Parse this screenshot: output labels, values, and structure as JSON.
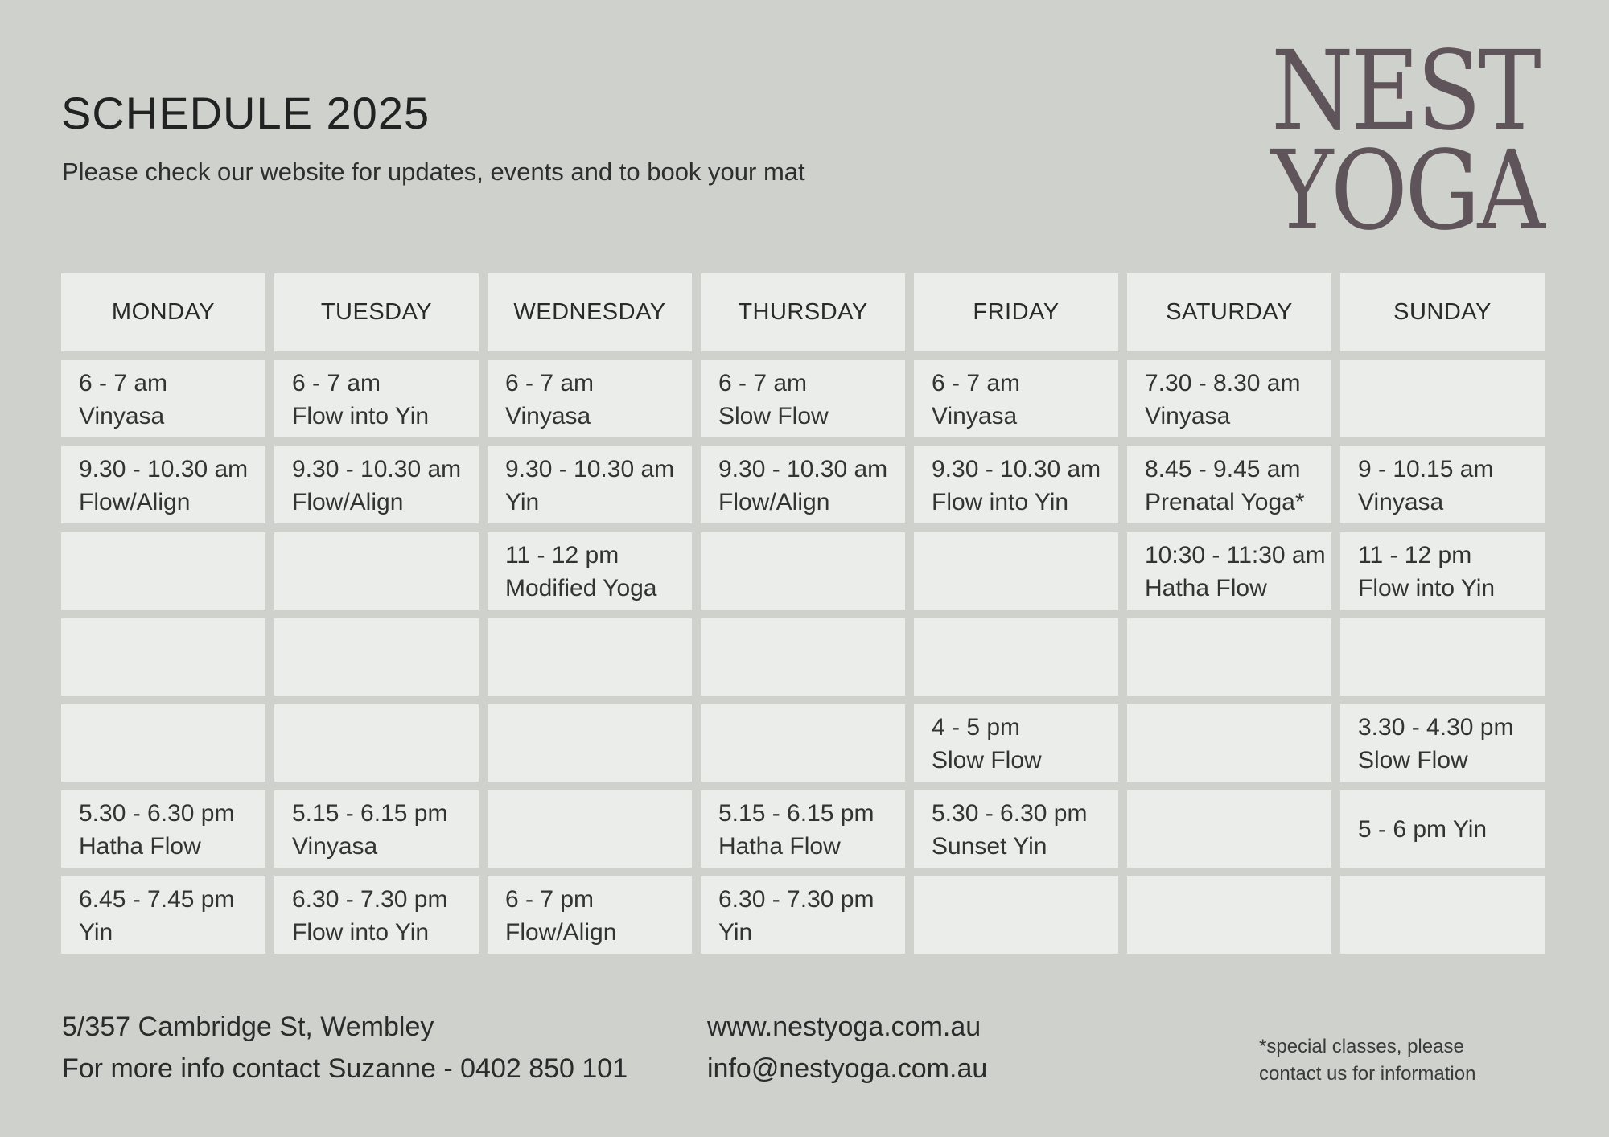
{
  "header": {
    "title": "SCHEDULE 2025",
    "subtitle": "Please check our website for updates, events and to book your mat"
  },
  "logo": {
    "line1": "NEST",
    "line2": "YOGA",
    "color": "#5e545a"
  },
  "colors": {
    "background": "#cfd1cc",
    "cell": "#ebedea",
    "text": "#2b2b2b"
  },
  "schedule": [
    {
      "day": "MONDAY",
      "slots": [
        [
          "6 - 7 am",
          "Vinyasa"
        ],
        [
          "9.30 - 10.30 am",
          "Flow/Align"
        ],
        [],
        [],
        [],
        [
          "5.30 - 6.30 pm",
          "Hatha Flow"
        ],
        [
          "6.45 - 7.45 pm",
          "Yin"
        ]
      ]
    },
    {
      "day": "TUESDAY",
      "slots": [
        [
          "6 - 7 am",
          "Flow into Yin"
        ],
        [
          "9.30 - 10.30 am",
          "Flow/Align"
        ],
        [],
        [],
        [],
        [
          "5.15 - 6.15 pm",
          "Vinyasa"
        ],
        [
          "6.30 - 7.30 pm",
          "Flow into Yin"
        ]
      ]
    },
    {
      "day": "WEDNESDAY",
      "slots": [
        [
          "6 - 7 am",
          "Vinyasa"
        ],
        [
          "9.30 - 10.30 am",
          "Yin"
        ],
        [
          "11 - 12 pm",
          "Modified Yoga"
        ],
        [],
        [],
        [],
        [
          "6 - 7 pm",
          "Flow/Align"
        ]
      ]
    },
    {
      "day": "THURSDAY",
      "slots": [
        [
          "6 - 7 am",
          "Slow Flow"
        ],
        [
          "9.30 - 10.30 am",
          "Flow/Align"
        ],
        [],
        [],
        [],
        [
          "5.15 - 6.15 pm",
          "Hatha Flow"
        ],
        [
          "6.30 - 7.30 pm",
          "Yin"
        ]
      ]
    },
    {
      "day": "FRIDAY",
      "slots": [
        [
          "6 - 7 am",
          "Vinyasa"
        ],
        [
          "9.30 - 10.30 am",
          "Flow into Yin"
        ],
        [],
        [],
        [
          "4 - 5 pm",
          "Slow Flow"
        ],
        [
          "5.30 - 6.30 pm",
          "Sunset Yin"
        ],
        []
      ]
    },
    {
      "day": "SATURDAY",
      "slots": [
        [
          "7.30 - 8.30 am",
          "Vinyasa"
        ],
        [
          "8.45 - 9.45 am",
          "Prenatal Yoga*"
        ],
        [
          "10:30 - 11:30 am",
          "Hatha Flow"
        ],
        [],
        [],
        [],
        []
      ]
    },
    {
      "day": "SUNDAY",
      "slots": [
        [],
        [
          "9 - 10.15 am",
          "Vinyasa"
        ],
        [
          "11 - 12 pm",
          "Flow into Yin"
        ],
        [],
        [
          "3.30 - 4.30 pm",
          "Slow Flow"
        ],
        [
          "5 - 6 pm Yin"
        ],
        []
      ]
    }
  ],
  "footer": {
    "address": "5/357 Cambridge St, Wembley",
    "contact": "For more info contact Suzanne -  0402 850 101",
    "website": "www.nestyoga.com.au",
    "email": "info@nestyoga.com.au",
    "note_line1": "*special classes, please",
    "note_line2": "contact us for information"
  }
}
